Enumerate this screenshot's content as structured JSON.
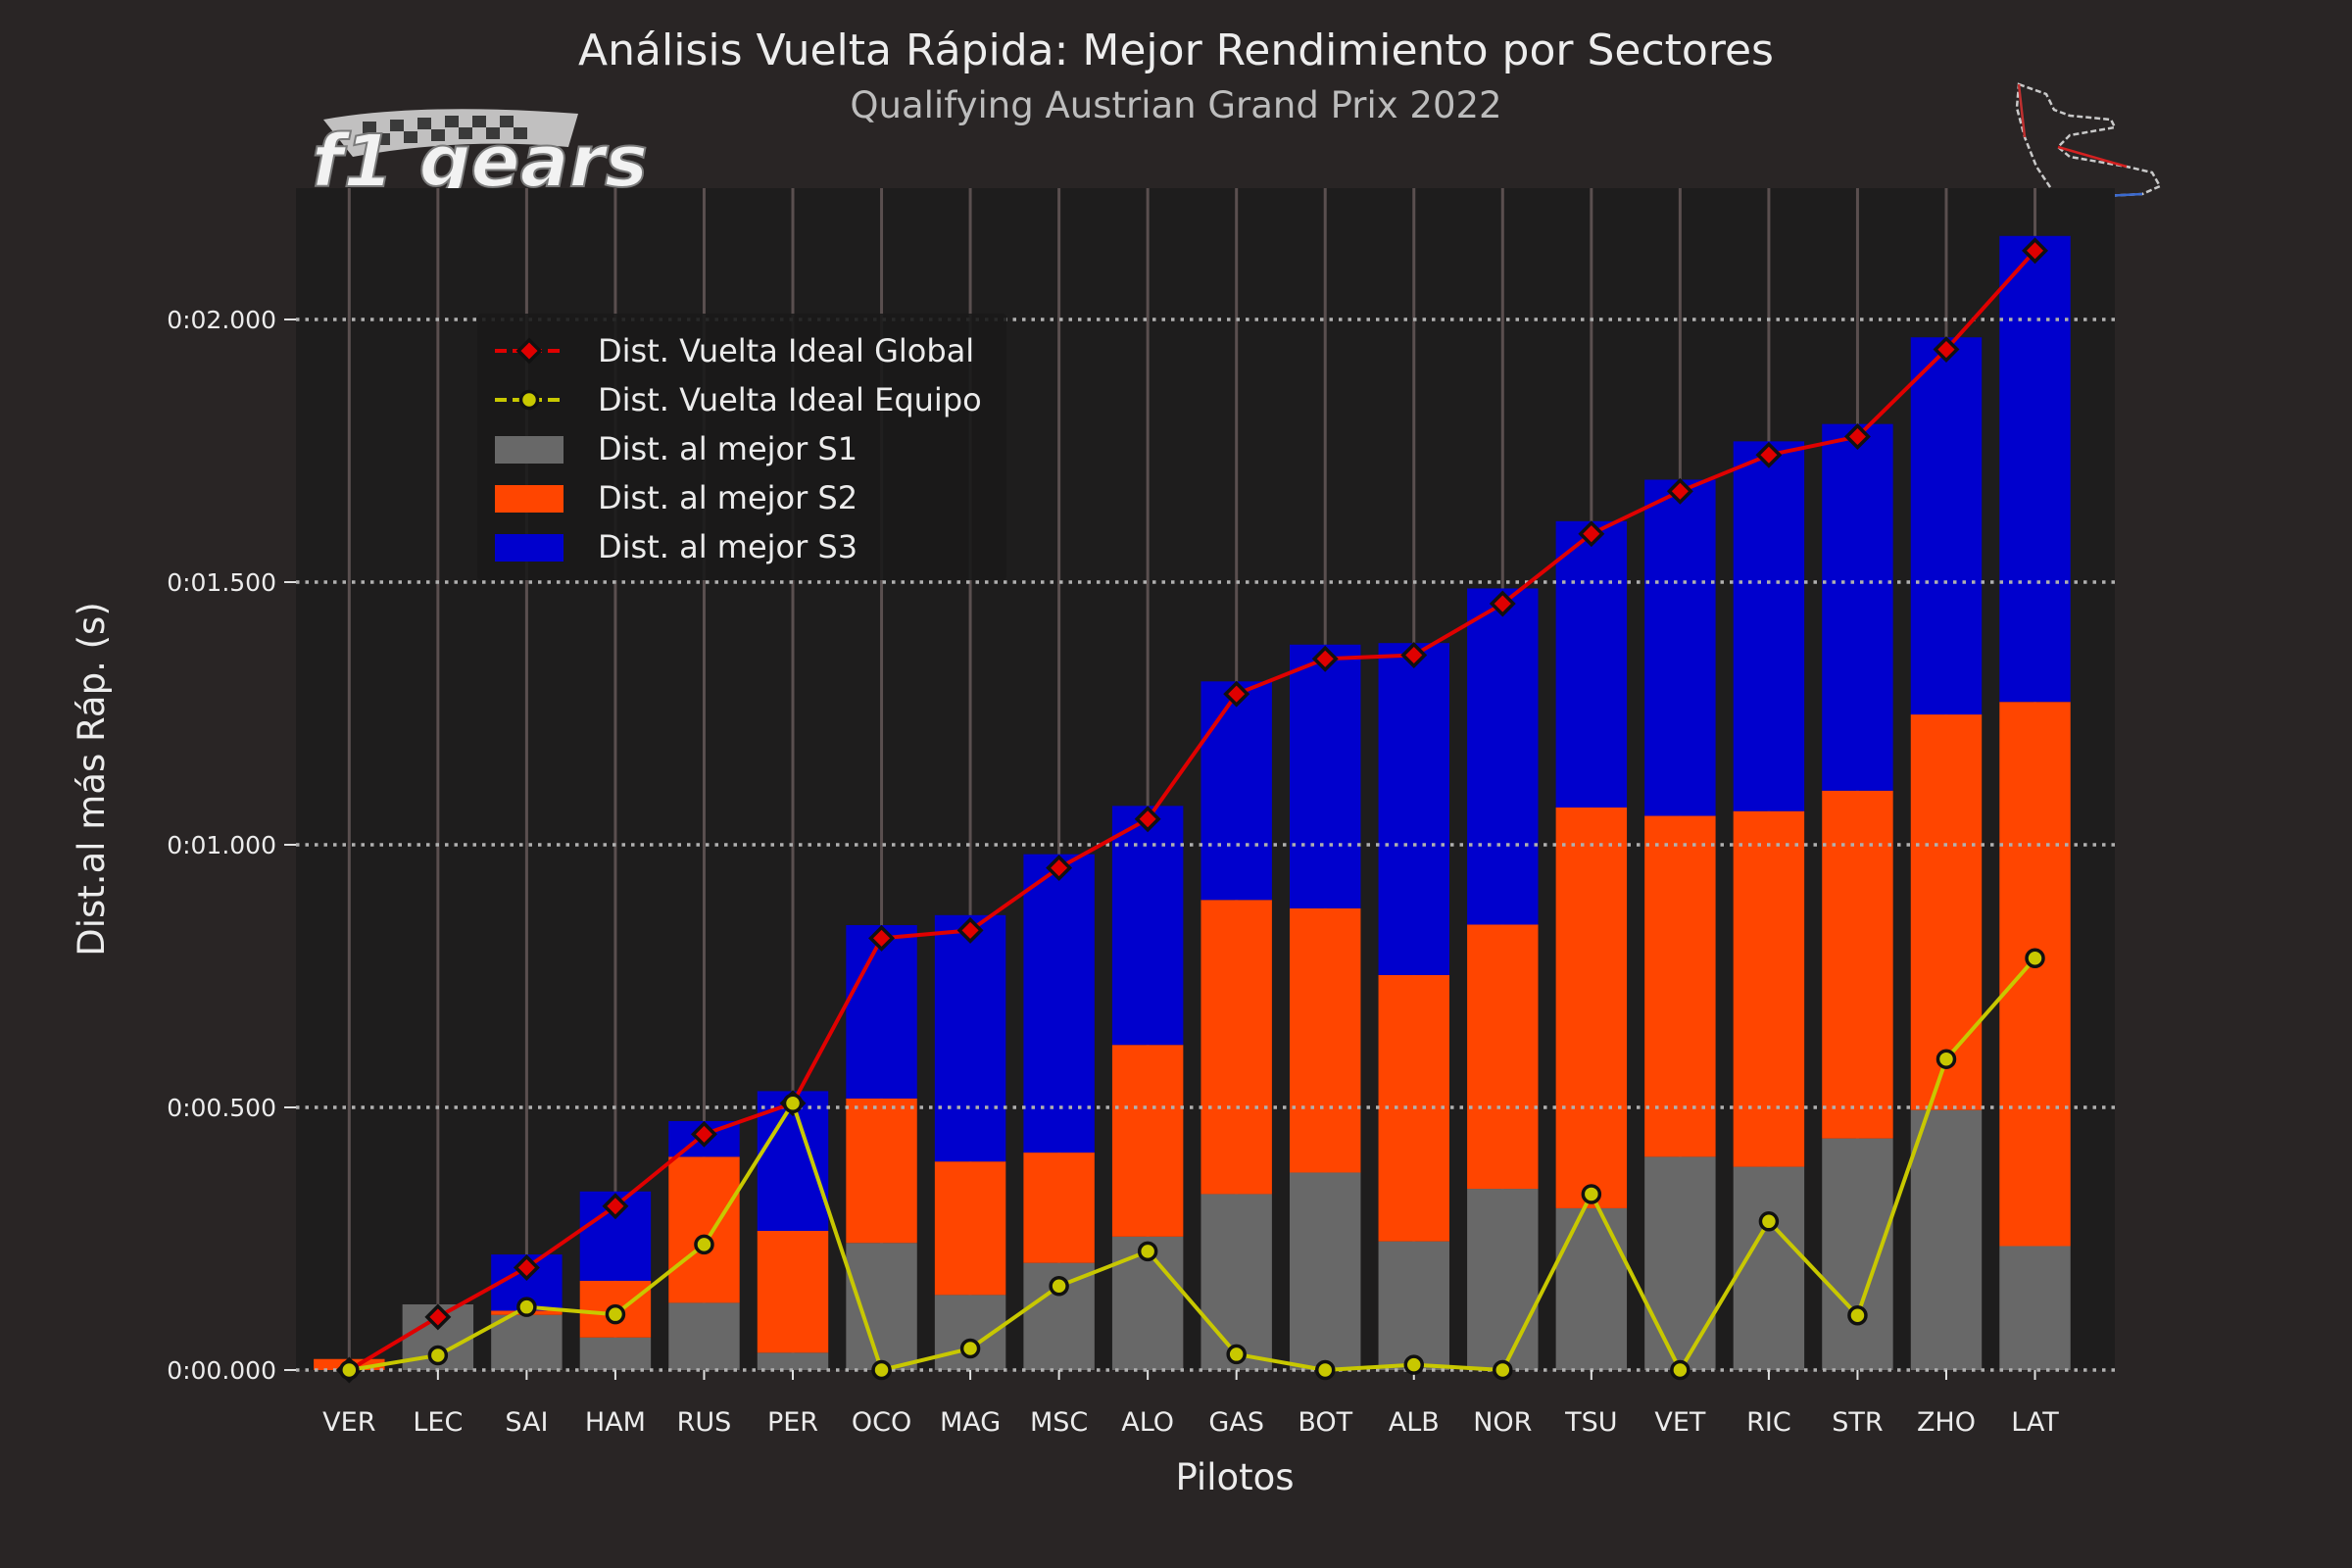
{
  "chart_data": {
    "type": "bar",
    "stacked": true,
    "title": "Análisis Vuelta Rápida: Mejor Rendimiento por Sectores",
    "subtitle": "Qualifying Austrian Grand Prix 2022",
    "xlabel": "Pilotos",
    "ylabel": "Dist.al más Ráp. (s)",
    "ylim": [
      0,
      2.25
    ],
    "yticks": [
      0,
      0.5,
      1.0,
      1.5,
      2.0
    ],
    "ytick_labels": [
      "0:00.000",
      "0:00.500",
      "0:01.000",
      "0:01.500",
      "0:02.000"
    ],
    "grid": true,
    "legend_position": "upper-left",
    "categories": [
      "VER",
      "LEC",
      "SAI",
      "HAM",
      "RUS",
      "PER",
      "OCO",
      "MAG",
      "MSC",
      "ALO",
      "GAS",
      "BOT",
      "ALB",
      "NOR",
      "TSU",
      "VET",
      "RIC",
      "STR",
      "ZHO",
      "LAT"
    ],
    "bar_series": [
      {
        "name": "Dist. al mejor S1",
        "color": "#686868",
        "values": [
          0.0,
          0.125,
          0.105,
          0.062,
          0.128,
          0.033,
          0.242,
          0.143,
          0.204,
          0.254,
          0.335,
          0.376,
          0.245,
          0.345,
          0.308,
          0.406,
          0.387,
          0.441,
          0.495,
          0.236
        ]
      },
      {
        "name": "Dist. al mejor S2",
        "color": "#ff4500",
        "values": [
          0.021,
          0.0,
          0.008,
          0.108,
          0.278,
          0.232,
          0.275,
          0.254,
          0.21,
          0.365,
          0.56,
          0.503,
          0.507,
          0.503,
          0.763,
          0.649,
          0.677,
          0.662,
          0.753,
          1.036
        ]
      },
      {
        "name": "Dist. al mejor S3",
        "color": "#0000cd",
        "values": [
          0.0,
          0.0,
          0.107,
          0.17,
          0.068,
          0.266,
          0.33,
          0.469,
          0.568,
          0.455,
          0.416,
          0.502,
          0.632,
          0.64,
          0.545,
          0.64,
          0.704,
          0.698,
          0.718,
          0.887
        ]
      }
    ],
    "line_series": [
      {
        "name": "Dist. Vuelta Ideal Global",
        "color": "#e00000",
        "marker": "diamond",
        "marker_color": "#e00000",
        "values": [
          0.0,
          0.101,
          0.195,
          0.312,
          0.449,
          0.508,
          0.822,
          0.837,
          0.956,
          1.049,
          1.287,
          1.354,
          1.361,
          1.459,
          1.592,
          1.673,
          1.742,
          1.777,
          1.943,
          2.131
        ]
      },
      {
        "name": "Dist. Vuelta Ideal Equipo",
        "color": "#c8c800",
        "marker": "circle",
        "marker_color": "#c8c800",
        "values": [
          0.0,
          0.028,
          0.12,
          0.106,
          0.239,
          0.508,
          0.0,
          0.041,
          0.16,
          0.226,
          0.03,
          0.0,
          0.01,
          0.0,
          0.335,
          0.0,
          0.283,
          0.104,
          0.592,
          0.784
        ]
      }
    ],
    "legend_order": [
      "Dist. Vuelta Ideal Global",
      "Dist. Vuelta Ideal Equipo",
      "Dist. al mejor S1",
      "Dist. al mejor S2",
      "Dist. al mejor S3"
    ]
  },
  "logo": {
    "text": "f1 gears",
    "icon": "checkered-flag-logo"
  },
  "track_map": {
    "icon": "circuit-outline-icon"
  }
}
